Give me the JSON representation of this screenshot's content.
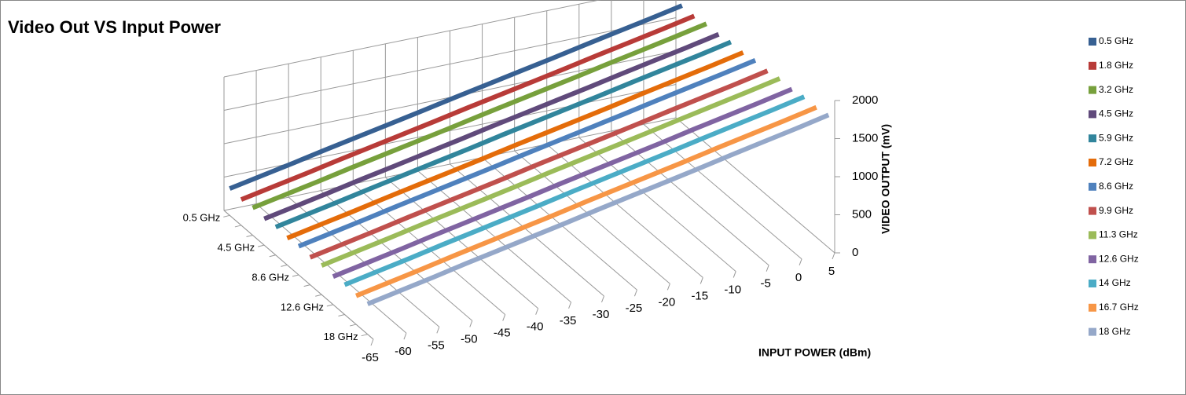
{
  "chart_data": {
    "type": "line3d",
    "title": "Video Out VS Input Power",
    "x_label": "INPUT POWER (dBm)",
    "y_label": "VIDEO OUTPUT (mV)",
    "categories": [
      -65,
      -60,
      -55,
      -50,
      -45,
      -40,
      -35,
      -30,
      -25,
      -20,
      -15,
      -10,
      -5,
      0,
      5
    ],
    "ylim": [
      0,
      2000
    ],
    "yticks": [
      0,
      500,
      1000,
      1500,
      2000
    ],
    "grid": true,
    "legend": "right",
    "series": [
      {
        "name": "0.5 GHz",
        "color": "#376092",
        "values": [
          400,
          495,
          590,
          690,
          785,
          880,
          975,
          1075,
          1170,
          1265,
          1360,
          1460,
          1555,
          1650,
          1750
        ]
      },
      {
        "name": "1.8 GHz",
        "color": "#b83b38",
        "values": [
          380,
          475,
          570,
          670,
          765,
          860,
          955,
          1055,
          1150,
          1245,
          1340,
          1440,
          1535,
          1630,
          1730
        ]
      },
      {
        "name": "3.2 GHz",
        "color": "#77a03c",
        "values": [
          400,
          495,
          590,
          690,
          785,
          880,
          975,
          1075,
          1170,
          1265,
          1360,
          1460,
          1555,
          1650,
          1750
        ]
      },
      {
        "name": "4.5 GHz",
        "color": "#604a7b",
        "values": [
          380,
          475,
          570,
          670,
          765,
          860,
          955,
          1055,
          1150,
          1245,
          1340,
          1440,
          1535,
          1630,
          1730
        ]
      },
      {
        "name": "5.9 GHz",
        "color": "#31859c",
        "values": [
          400,
          495,
          590,
          690,
          785,
          880,
          975,
          1075,
          1170,
          1265,
          1360,
          1460,
          1555,
          1650,
          1750
        ]
      },
      {
        "name": "7.2 GHz",
        "color": "#e46c0a",
        "values": [
          380,
          475,
          570,
          670,
          765,
          860,
          955,
          1055,
          1150,
          1245,
          1340,
          1440,
          1535,
          1630,
          1730
        ]
      },
      {
        "name": "8.6 GHz",
        "color": "#4f81bd",
        "values": [
          400,
          495,
          590,
          690,
          785,
          880,
          975,
          1075,
          1170,
          1265,
          1360,
          1460,
          1555,
          1650,
          1750
        ]
      },
      {
        "name": "9.9 GHz",
        "color": "#c0504d",
        "values": [
          380,
          475,
          570,
          670,
          765,
          860,
          955,
          1055,
          1150,
          1245,
          1340,
          1440,
          1535,
          1630,
          1730
        ]
      },
      {
        "name": "11.3 GHz",
        "color": "#9bbb59",
        "values": [
          400,
          495,
          590,
          690,
          785,
          880,
          975,
          1075,
          1170,
          1265,
          1360,
          1460,
          1555,
          1650,
          1750
        ]
      },
      {
        "name": "12.6 GHz",
        "color": "#8064a2",
        "values": [
          380,
          475,
          570,
          670,
          765,
          860,
          955,
          1055,
          1150,
          1245,
          1340,
          1440,
          1535,
          1630,
          1730
        ]
      },
      {
        "name": "14 GHz",
        "color": "#4bacc6",
        "values": [
          400,
          495,
          590,
          690,
          785,
          880,
          975,
          1075,
          1170,
          1265,
          1360,
          1460,
          1555,
          1650,
          1750
        ]
      },
      {
        "name": "16.7 GHz",
        "color": "#f79646",
        "values": [
          380,
          475,
          570,
          670,
          765,
          860,
          955,
          1055,
          1150,
          1245,
          1340,
          1440,
          1535,
          1630,
          1730
        ]
      },
      {
        "name": "18 GHz",
        "color": "#95a8c9",
        "values": [
          400,
          495,
          590,
          690,
          785,
          880,
          975,
          1075,
          1170,
          1265,
          1360,
          1460,
          1555,
          1650,
          1750
        ]
      }
    ]
  }
}
